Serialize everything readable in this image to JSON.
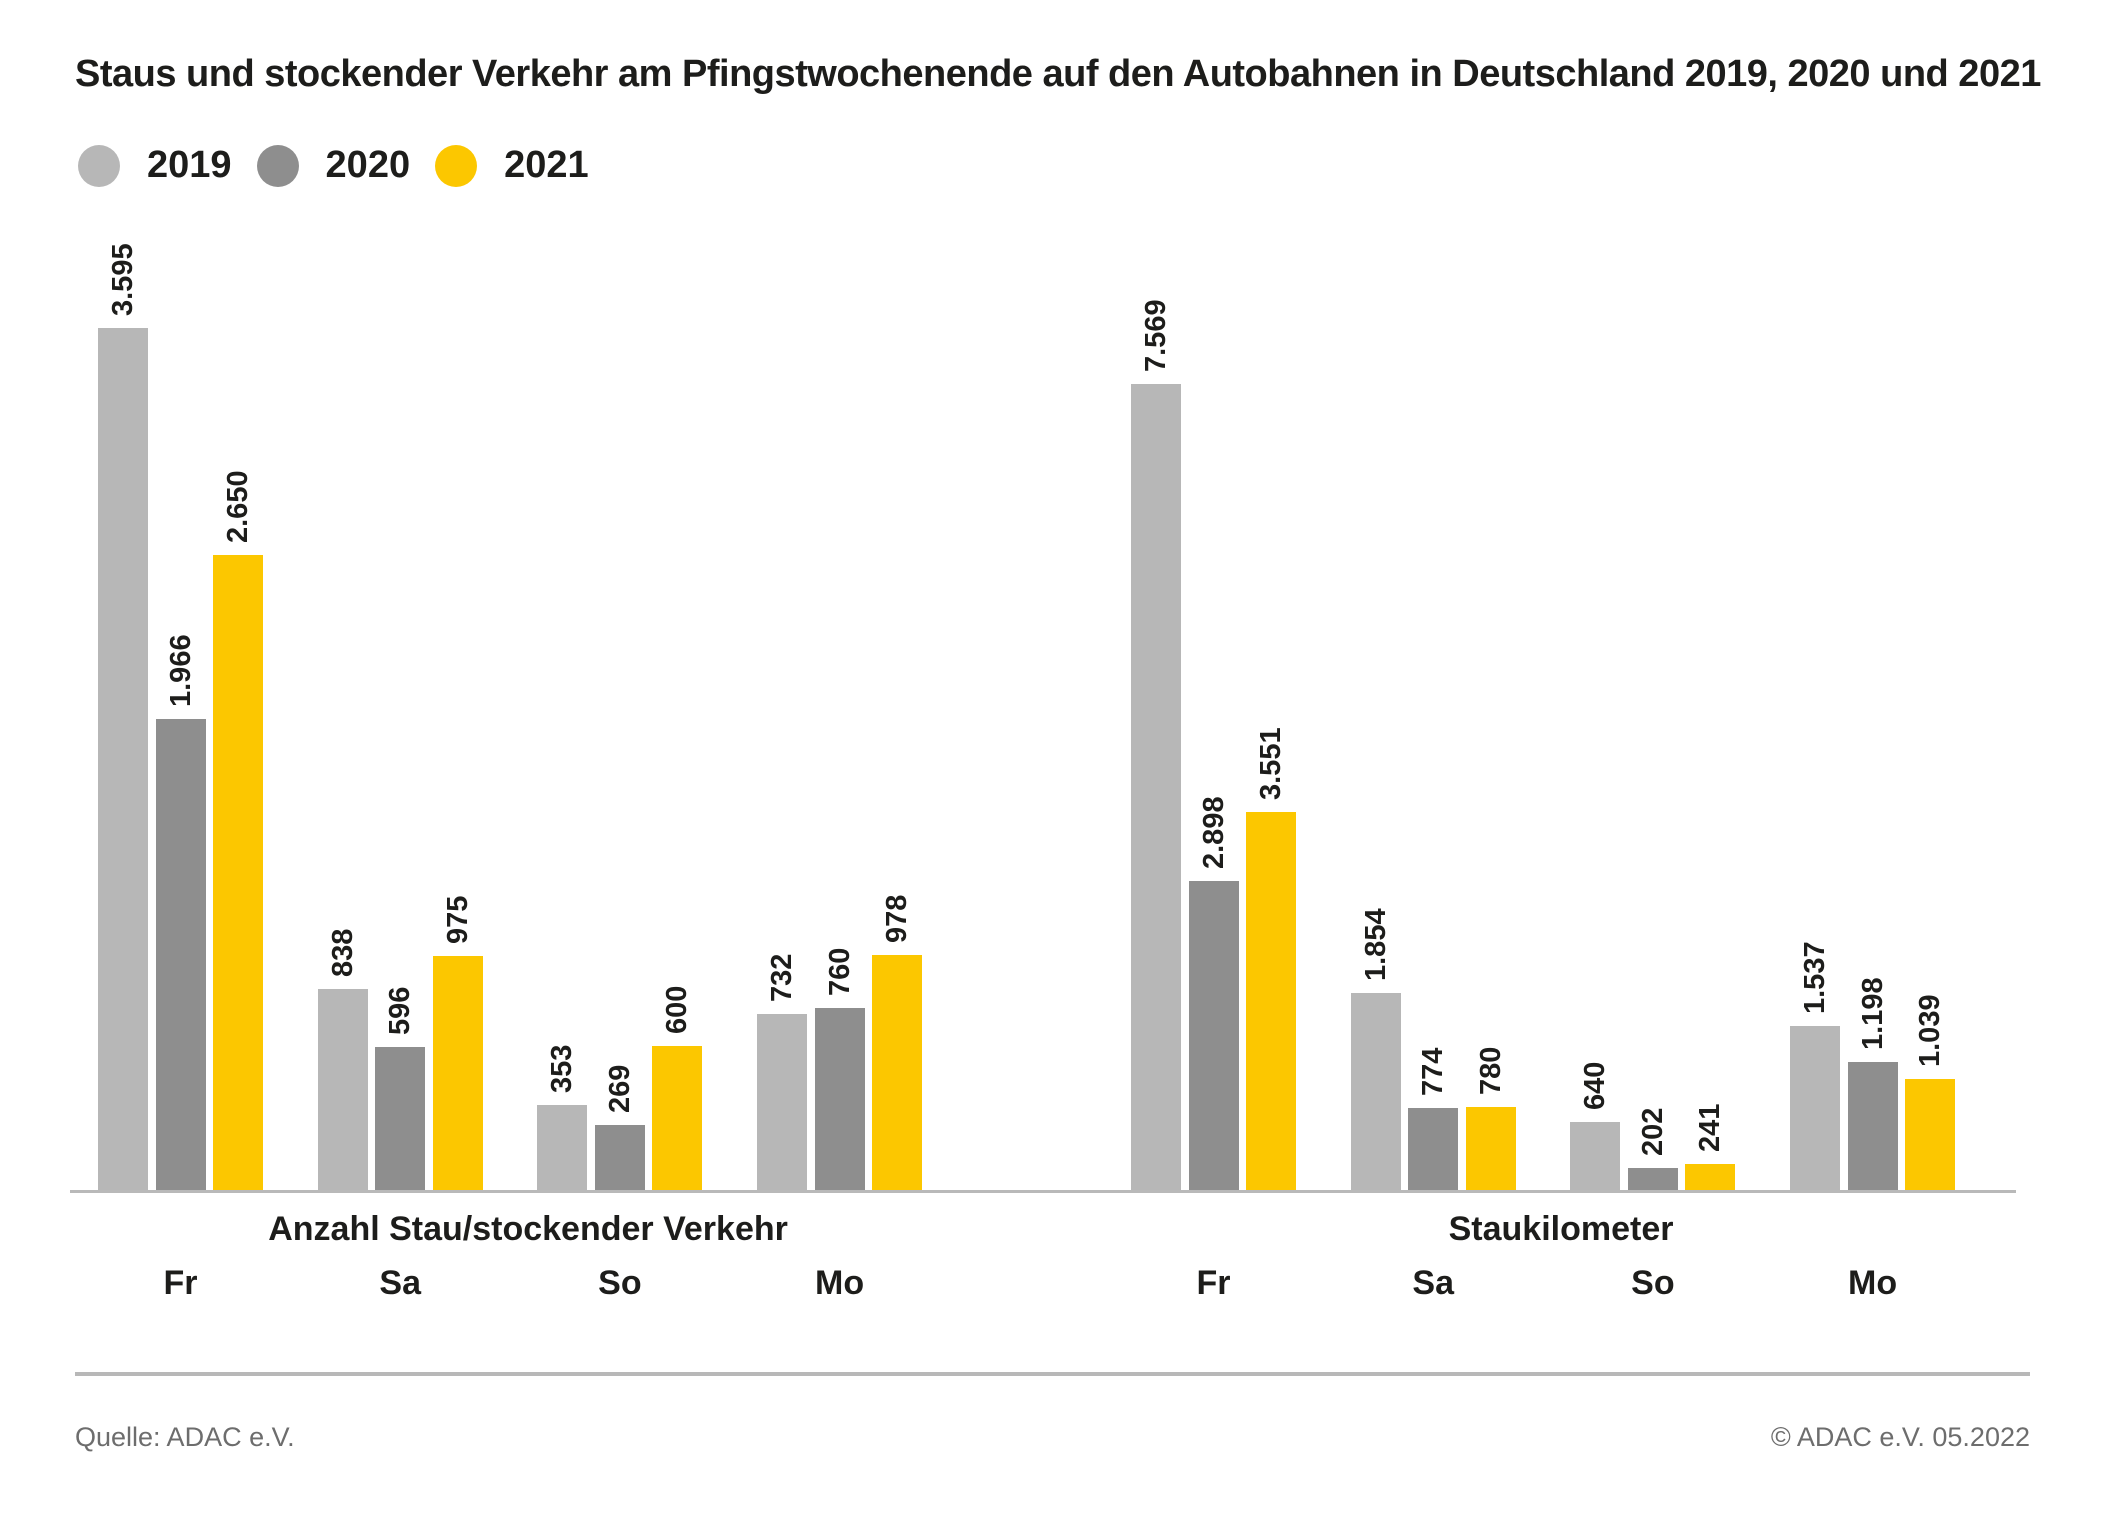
{
  "title": "Staus und stockender Verkehr am Pfingstwochenende auf den Autobahnen in Deutschland 2019, 2020 und 2021",
  "legend": {
    "items": [
      {
        "label": "2019",
        "color": "#b7b7b7"
      },
      {
        "label": "2020",
        "color": "#8e8e8e"
      },
      {
        "label": "2021",
        "color": "#fcc700"
      }
    ]
  },
  "chart_data": {
    "type": "bar",
    "title": "Staus und stockender Verkehr am Pfingstwochenende auf den Autobahnen in Deutschland 2019, 2020 und 2021",
    "legend_position": "top-left",
    "gridlines": false,
    "value_axis_visible": false,
    "value_labels": "direct, rotated 90deg, German thousands separator (dot)",
    "categories": [
      "Fr",
      "Sa",
      "So",
      "Mo"
    ],
    "series_names": [
      "2019",
      "2020",
      "2021"
    ],
    "groups": [
      {
        "label": "Anzahl Stau/stockender Verkehr",
        "categories": [
          "Fr",
          "Sa",
          "So",
          "Mo"
        ],
        "series": [
          {
            "name": "2019",
            "values": [
              3595,
              838,
              353,
              732
            ]
          },
          {
            "name": "2020",
            "values": [
              1966,
              596,
              269,
              760
            ]
          },
          {
            "name": "2021",
            "values": [
              2650,
              975,
              600,
              978
            ]
          }
        ]
      },
      {
        "label": "Staukilometer",
        "categories": [
          "Fr",
          "Sa",
          "So",
          "Mo"
        ],
        "series": [
          {
            "name": "2019",
            "values": [
              7569,
              1854,
              640,
              1537
            ]
          },
          {
            "name": "2020",
            "values": [
              2898,
              774,
              202,
              1198
            ]
          },
          {
            "name": "2021",
            "values": [
              3551,
              780,
              241,
              1039
            ]
          }
        ]
      }
    ]
  },
  "footer": {
    "source": "Quelle: ADAC e.V.",
    "copyright": "© ADAC e.V. 05.2022"
  }
}
